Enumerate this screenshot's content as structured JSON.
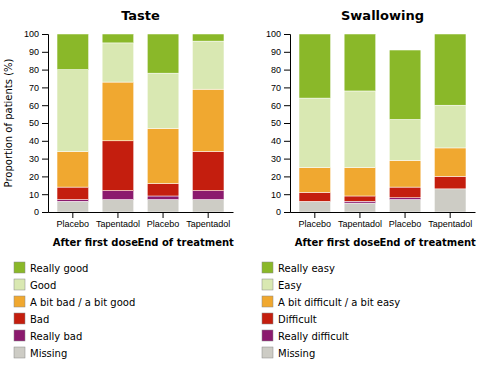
{
  "chart_data": [
    {
      "type": "bar",
      "stacked": true,
      "title": "Taste",
      "y_label": "Proportion of patients (%)",
      "categories": [
        "Placebo",
        "Tapentadol",
        "Placebo",
        "Tapentadol"
      ],
      "annotations": [
        "After first dose",
        "End of treatment"
      ],
      "series": [
        {
          "name": "Missing",
          "color": "#cdccc5",
          "values": [
            6,
            7,
            7,
            7
          ]
        },
        {
          "name": "Really bad",
          "color": "#8b1a6e",
          "values": [
            1,
            5,
            2,
            5
          ]
        },
        {
          "name": "Bad",
          "color": "#c41e0e",
          "values": [
            7,
            28,
            7,
            22
          ]
        },
        {
          "name": "A bit bad / a bit good",
          "color": "#f0a830",
          "values": [
            20,
            33,
            31,
            35
          ]
        },
        {
          "name": "Good",
          "color": "#d9e8b2",
          "values": [
            46,
            22,
            31,
            27
          ]
        },
        {
          "name": "Really good",
          "color": "#8ab829",
          "values": [
            20,
            5,
            22,
            4
          ]
        }
      ],
      "ylim": [
        0,
        100
      ],
      "yticks": [
        0,
        10,
        20,
        30,
        40,
        50,
        60,
        70,
        80,
        90,
        100
      ],
      "grid": false
    },
    {
      "type": "bar",
      "stacked": true,
      "title": "Swallowing",
      "categories": [
        "Placebo",
        "Tapentadol",
        "Placebo",
        "Tapentadol"
      ],
      "annotations": [
        "After first dose",
        "End of treatment"
      ],
      "series": [
        {
          "name": "Missing",
          "color": "#cdccc5",
          "values": [
            6,
            5,
            7,
            13
          ]
        },
        {
          "name": "Really difficult",
          "color": "#8b1a6e",
          "values": [
            0,
            1,
            1,
            0
          ]
        },
        {
          "name": "Difficult",
          "color": "#c41e0e",
          "values": [
            5,
            3,
            6,
            7
          ]
        },
        {
          "name": "A bit difficult / a bit easy",
          "color": "#f0a830",
          "values": [
            14,
            16,
            15,
            16
          ]
        },
        {
          "name": "Easy",
          "color": "#d9e8b2",
          "values": [
            39,
            43,
            23,
            24
          ]
        },
        {
          "name": "Really easy",
          "color": "#8ab829",
          "values": [
            36,
            32,
            39,
            40
          ]
        }
      ],
      "ylim": [
        0,
        100
      ],
      "yticks": [
        0,
        10,
        20,
        30,
        40,
        50,
        60,
        70,
        80,
        90,
        100
      ],
      "grid": false
    }
  ]
}
